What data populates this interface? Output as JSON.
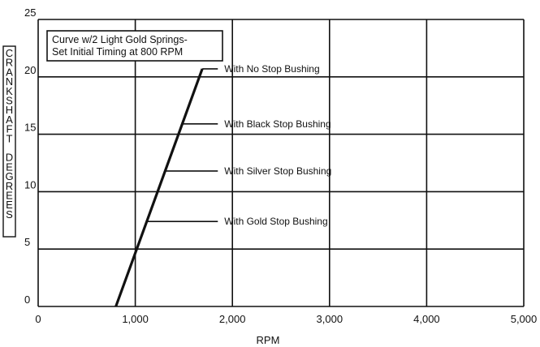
{
  "chart_data": {
    "type": "line",
    "title": "",
    "xlabel": "RPM",
    "ylabel": "CRANKSHAFT DEGREES",
    "xlim": [
      0,
      5000
    ],
    "ylim": [
      0,
      25
    ],
    "x_ticks": [
      "0",
      "1,000",
      "2,000",
      "3,000",
      "4,000",
      "5,000"
    ],
    "y_ticks": [
      "0",
      "5",
      "10",
      "15",
      "20",
      "25"
    ],
    "grid": true,
    "series": [
      {
        "x": [
          800,
          1690
        ],
        "y": [
          0,
          20.7
        ]
      }
    ],
    "note_box": [
      "Curve w/2 Light Gold Springs-",
      "Set Initial Timing at 800 RPM"
    ],
    "annotations": [
      {
        "text": "With No Stop Bushing",
        "x": 1690,
        "y": 20.7,
        "x_end": 1850
      },
      {
        "text": "With Black Stop Bushing",
        "x": 1480,
        "y": 15.9,
        "x_end": 1850
      },
      {
        "text": "With Silver Stop Bushing",
        "x": 1310,
        "y": 11.8,
        "x_end": 1850
      },
      {
        "text": "With Gold Stop Bushing",
        "x": 1120,
        "y": 7.4,
        "x_end": 1850
      }
    ]
  },
  "colors": {
    "line": "#111111",
    "grid": "#111111",
    "background": "#ffffff"
  }
}
